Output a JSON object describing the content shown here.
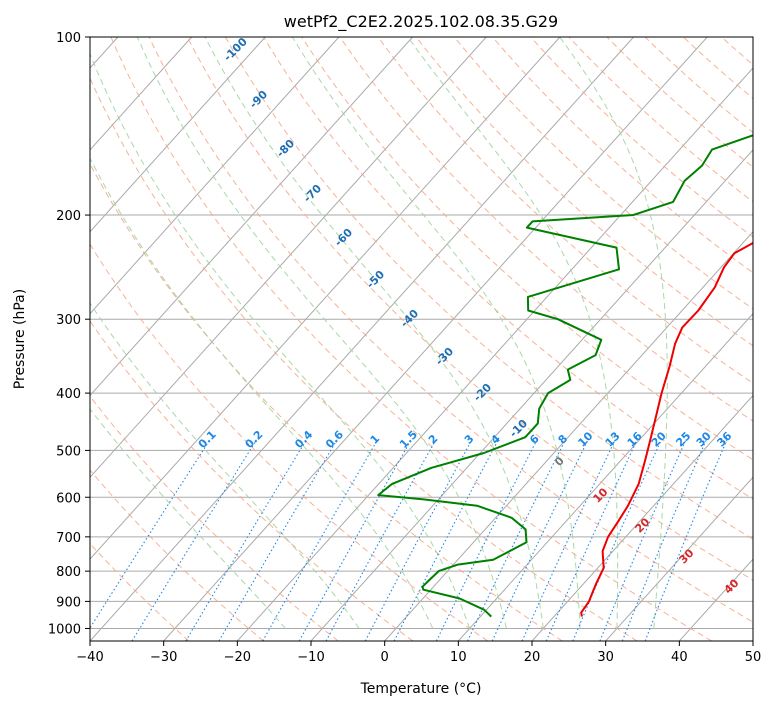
{
  "chart_data": {
    "type": "line",
    "subtype": "skew-t log-p diagram",
    "title": "wetPf2_C2E2.2025.102.08.35.G29",
    "xlabel": "Temperature (°C)",
    "ylabel": "Pressure (hPa)",
    "xlim": [
      -40,
      50
    ],
    "ylim": [
      1050,
      100
    ],
    "y_scale": "log",
    "x_ticks": [
      "−40",
      "−30",
      "−20",
      "−10",
      "0",
      "10",
      "20",
      "30",
      "40",
      "50"
    ],
    "x_tick_values": [
      -40,
      -30,
      -20,
      -10,
      0,
      10,
      20,
      30,
      40,
      50
    ],
    "y_ticks": [
      "100",
      "200",
      "300",
      "400",
      "500",
      "600",
      "700",
      "800",
      "900",
      "1000"
    ],
    "y_tick_values": [
      100,
      200,
      300,
      400,
      500,
      600,
      700,
      800,
      900,
      1000
    ],
    "grid": true,
    "colors": {
      "temperature": "#ee0000",
      "dewpoint": "#008000",
      "isotherm": "#aaaaaa",
      "dry_adiabat": "#f4a582",
      "moist_adiabat": "#9fd49f",
      "mixing_ratio": "#1e88e5",
      "isotherm_label": "#1f6fb5",
      "mixing_label": "#1e88e5",
      "adiabat_label": "#d62728",
      "zero_label": "#777777"
    },
    "series": [
      {
        "key": "temperature",
        "points": [
          [
            23.8,
            955
          ],
          [
            23.2,
            940
          ],
          [
            22.9,
            900
          ],
          [
            22.3,
            870
          ],
          [
            21.7,
            840
          ],
          [
            20.8,
            790
          ],
          [
            18.6,
            740
          ],
          [
            17.6,
            700
          ],
          [
            17.1,
            660
          ],
          [
            16.5,
            620
          ],
          [
            15.3,
            570
          ],
          [
            13.3,
            520
          ],
          [
            11.5,
            480
          ],
          [
            9.5,
            440
          ],
          [
            7.3,
            400
          ],
          [
            5.1,
            360
          ],
          [
            3.1,
            330
          ],
          [
            2.1,
            310
          ],
          [
            2.2,
            290
          ],
          [
            1.6,
            265
          ],
          [
            0.4,
            245
          ],
          [
            0.1,
            232
          ],
          [
            2.1,
            218
          ],
          [
            5.8,
            205
          ],
          [
            7.7,
            190
          ],
          [
            8.7,
            175
          ],
          [
            9.5,
            160
          ],
          [
            9.6,
            150
          ],
          [
            9.1,
            140
          ],
          [
            8.5,
            130
          ],
          [
            8.3,
            120
          ],
          [
            8.0,
            110
          ],
          [
            7.6,
            100
          ]
        ]
      },
      {
        "key": "dewpoint",
        "points": [
          [
            11.5,
            955
          ],
          [
            9.7,
            930
          ],
          [
            5.0,
            890
          ],
          [
            -1.0,
            860
          ],
          [
            -1.5,
            850
          ],
          [
            -1.4,
            830
          ],
          [
            -1.2,
            800
          ],
          [
            0.6,
            780
          ],
          [
            4.8,
            765
          ],
          [
            7.2,
            715
          ],
          [
            5.5,
            680
          ],
          [
            2.2,
            650
          ],
          [
            -4.0,
            620
          ],
          [
            -12.0,
            605
          ],
          [
            -18.7,
            595
          ],
          [
            -18.2,
            570
          ],
          [
            -14.8,
            535
          ],
          [
            -9.5,
            505
          ],
          [
            -5.8,
            475
          ],
          [
            -5.8,
            450
          ],
          [
            -7.4,
            425
          ],
          [
            -8.1,
            400
          ],
          [
            -6.7,
            380
          ],
          [
            -8.3,
            365
          ],
          [
            -6.3,
            345
          ],
          [
            -7.4,
            325
          ],
          [
            -15.8,
            300
          ],
          [
            -20.9,
            290
          ],
          [
            -22.6,
            275
          ],
          [
            -13.6,
            247
          ],
          [
            -16.6,
            227
          ],
          [
            -31.2,
            210
          ],
          [
            -31.2,
            205
          ],
          [
            -18.3,
            200
          ],
          [
            -14.5,
            190
          ],
          [
            -15.5,
            175
          ],
          [
            -15.0,
            165
          ],
          [
            -15.6,
            155
          ],
          [
            -11.0,
            145
          ],
          [
            -9.5,
            135
          ],
          [
            -8.9,
            125
          ],
          [
            -5.2,
            115
          ],
          [
            -2.5,
            105
          ],
          [
            -1.5,
            100
          ]
        ]
      }
    ],
    "isotherm_labels": [
      "-100",
      "-90",
      "-80",
      "-70",
      "-60",
      "-50",
      "-40",
      "-30",
      "-20",
      "-10",
      "0"
    ],
    "mixing_ratio_labels": [
      "0.1",
      "0.2",
      "0.4",
      "0.6",
      "1",
      "1.5",
      "2",
      "3",
      "4",
      "6",
      "8",
      "10",
      "13",
      "16",
      "20",
      "25",
      "30",
      "36"
    ],
    "adiabat_labels": [
      "10",
      "20",
      "30",
      "40"
    ]
  }
}
